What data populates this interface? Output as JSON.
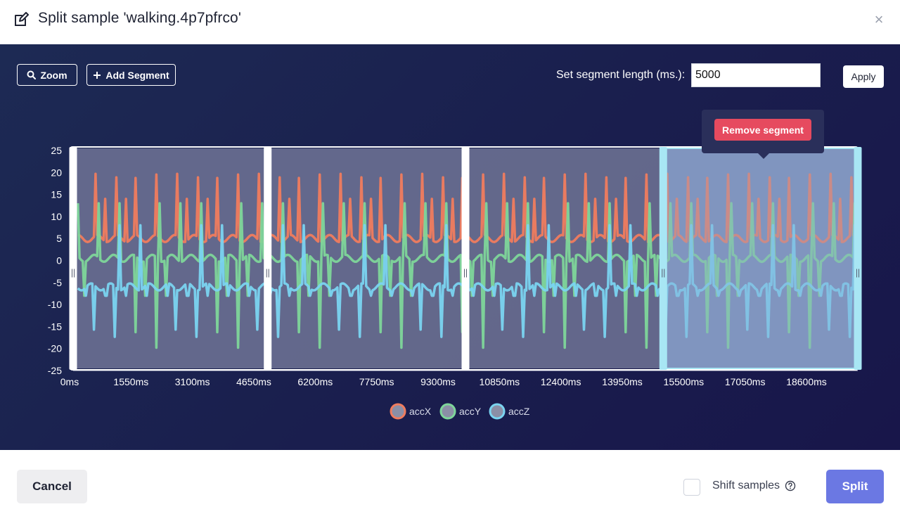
{
  "dialog": {
    "title": "Split sample 'walking.4p7pfrco'",
    "close_label": "×",
    "edit_icon": "pencil-square-icon"
  },
  "toolbar": {
    "zoom_label": "Zoom",
    "add_segment_label": "Add Segment",
    "segment_length_label": "Set segment length (ms.):",
    "segment_length_value": "5000",
    "apply_label": "Apply"
  },
  "tooltip": {
    "remove_segment_label": "Remove segment"
  },
  "chart_data": {
    "type": "line",
    "ylim": [
      -25,
      25
    ],
    "y_ticks": [
      "25",
      "20",
      "15",
      "10",
      "5",
      "0",
      "-5",
      "-10",
      "-15",
      "-20",
      "-25"
    ],
    "x_ticks": [
      "0ms",
      "1550ms",
      "3100ms",
      "4650ms",
      "6200ms",
      "7750ms",
      "9300ms",
      "10850ms",
      "12400ms",
      "13950ms",
      "15500ms",
      "17050ms",
      "18600ms"
    ],
    "x_range_ms": [
      0,
      19600
    ],
    "series": [
      {
        "name": "accX",
        "color": "#f07c5e",
        "baseline": 5,
        "peak": 20,
        "trough": 3
      },
      {
        "name": "accY",
        "color": "#7ed69a",
        "baseline": 0.5,
        "peak": 17,
        "trough": -20
      },
      {
        "name": "accZ",
        "color": "#7ad4f0",
        "baseline": -6,
        "peak": 10,
        "trough": -18
      }
    ],
    "segments": [
      {
        "start_ms": 0,
        "end_ms": 4860,
        "selected": false
      },
      {
        "start_ms": 4860,
        "end_ms": 9800,
        "selected": false
      },
      {
        "start_ms": 9800,
        "end_ms": 14740,
        "selected": false
      },
      {
        "start_ms": 14740,
        "end_ms": 19600,
        "selected": true
      }
    ],
    "colors": {
      "segment": "#6b7092",
      "segment_selected": "#7e93bd",
      "handle": "#ffffff",
      "handle_selected": "#a8e6f4"
    }
  },
  "footer": {
    "cancel_label": "Cancel",
    "shift_samples_label": "Shift samples",
    "split_label": "Split"
  }
}
